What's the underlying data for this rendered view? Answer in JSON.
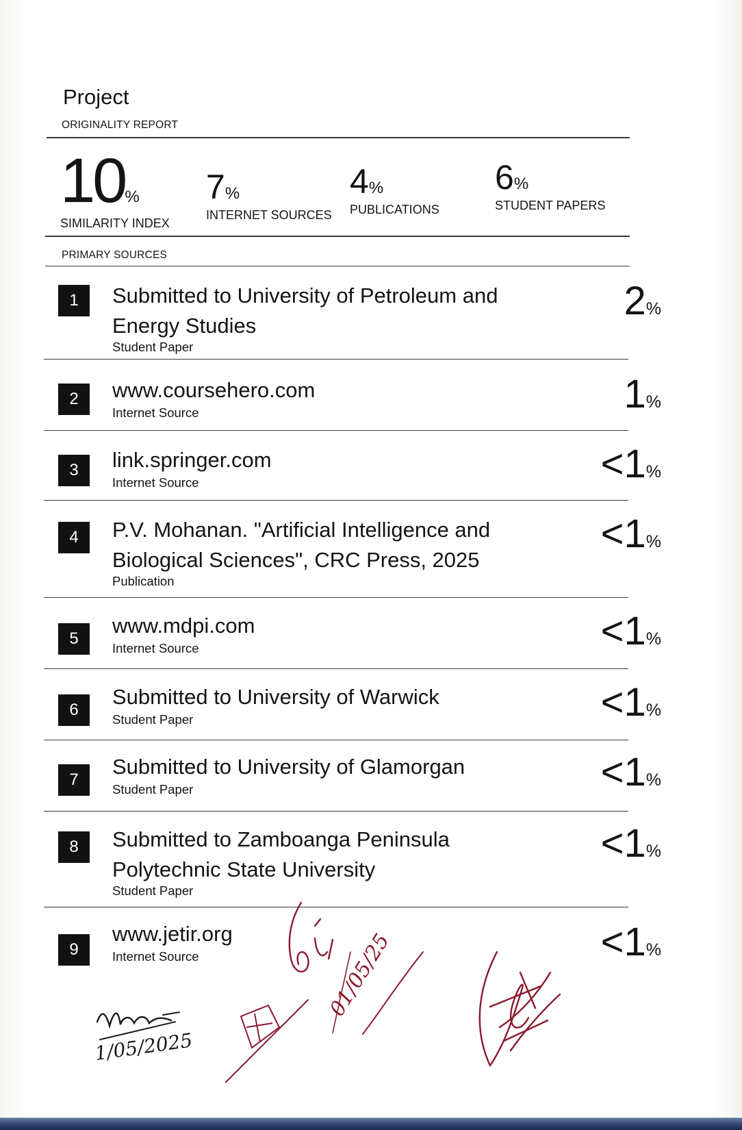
{
  "report": {
    "title": "Project",
    "section_originality": "ORIGINALITY REPORT",
    "section_primary": "PRIMARY SOURCES"
  },
  "stats": [
    {
      "value": "10",
      "pct": "%",
      "label": "SIMILARITY INDEX"
    },
    {
      "value": "7",
      "pct": "%",
      "label": "INTERNET SOURCES"
    },
    {
      "value": "4",
      "pct": "%",
      "label": "PUBLICATIONS"
    },
    {
      "value": "6",
      "pct": "%",
      "label": "STUDENT PAPERS"
    }
  ],
  "sources": [
    {
      "index": "1",
      "title_lines": [
        "Submitted to University of Petroleum and",
        "Energy Studies"
      ],
      "type": "Student Paper",
      "value": "2",
      "pct": "%"
    },
    {
      "index": "2",
      "title_lines": [
        "www.coursehero.com"
      ],
      "type": "Internet Source",
      "value": "1",
      "pct": "%"
    },
    {
      "index": "3",
      "title_lines": [
        "link.springer.com"
      ],
      "type": "Internet Source",
      "value": "<1",
      "pct": "%"
    },
    {
      "index": "4",
      "title_lines": [
        "P.V. Mohanan. \"Artificial Intelligence and",
        "Biological Sciences\", CRC Press, 2025"
      ],
      "type": "Publication",
      "value": "<1",
      "pct": "%"
    },
    {
      "index": "5",
      "title_lines": [
        "www.mdpi.com"
      ],
      "type": "Internet Source",
      "value": "<1",
      "pct": "%"
    },
    {
      "index": "6",
      "title_lines": [
        "Submitted to University of Warwick"
      ],
      "type": "Student Paper",
      "value": "<1",
      "pct": "%"
    },
    {
      "index": "7",
      "title_lines": [
        "Submitted to University of Glamorgan"
      ],
      "type": "Student Paper",
      "value": "<1",
      "pct": "%"
    },
    {
      "index": "8",
      "title_lines": [
        "Submitted to Zamboanga Peninsula",
        "Polytechnic State University"
      ],
      "type": "Student Paper",
      "value": "<1",
      "pct": "%"
    },
    {
      "index": "9",
      "title_lines": [
        "www.jetir.org"
      ],
      "type": "Internet Source",
      "value": "<1",
      "pct": "%"
    }
  ],
  "handwriting": {
    "date_stamp_1": "01/05/25",
    "date_stamp_2": "1/05/2025"
  },
  "colors": {
    "ink_red": "#8a1a2e",
    "ink_black": "#1a1a1a",
    "index_box": "#121212"
  }
}
